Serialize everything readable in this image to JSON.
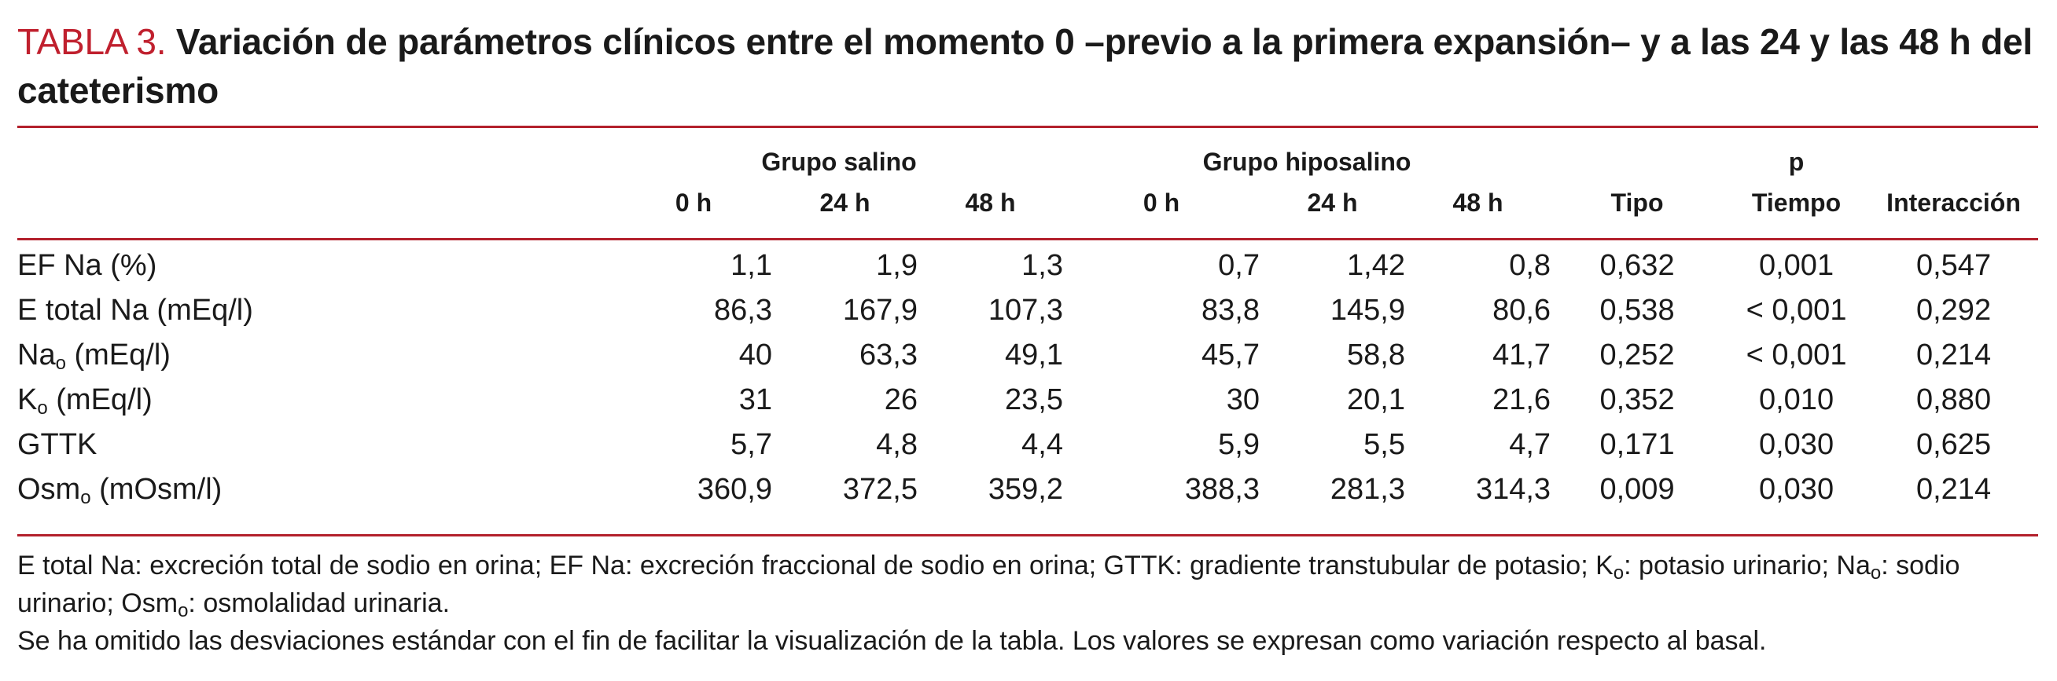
{
  "title": {
    "label": "TABLA 3.",
    "text": "Variación de parámetros clínicos entre el momento 0 –previo a la primera expansión– y a las 24 y las 48 h del cateterismo"
  },
  "header": {
    "group_salino": "Grupo salino",
    "group_hiposalino": "Grupo hiposalino",
    "group_p": "p",
    "cols_salino": [
      "0 h",
      "24 h",
      "48 h"
    ],
    "cols_hiposalino": [
      "0 h",
      "24 h",
      "48 h"
    ],
    "cols_p": [
      "Tipo",
      "Tiempo",
      "Interacción"
    ]
  },
  "rows": [
    {
      "label": "EF Na (%)",
      "label_main": "EF Na (%)",
      "sub": "",
      "rest": "",
      "values": [
        "1,1",
        "1,9",
        "1,3",
        "0,7",
        "1,42",
        "0,8",
        "0,632",
        "0,001",
        "0,547"
      ]
    },
    {
      "label": "E total Na (mEq/l)",
      "label_main": "E total Na (mEq/l)",
      "sub": "",
      "rest": "",
      "values": [
        "86,3",
        "167,9",
        "107,3",
        "83,8",
        "145,9",
        "80,6",
        "0,538",
        "< 0,001",
        "0,292"
      ]
    },
    {
      "label_main": "Na",
      "sub": "o",
      "rest": " (mEq/l)",
      "values": [
        "40",
        "63,3",
        "49,1",
        "45,7",
        "58,8",
        "41,7",
        "0,252",
        "< 0,001",
        "0,214"
      ]
    },
    {
      "label_main": "K",
      "sub": "o",
      "rest": " (mEq/l)",
      "values": [
        "31",
        "26",
        "23,5",
        "30",
        "20,1",
        "21,6",
        "0,352",
        "0,010",
        "0,880"
      ]
    },
    {
      "label_main": "GTTK",
      "sub": "",
      "rest": "",
      "values": [
        "5,7",
        "4,8",
        "4,4",
        "5,9",
        "5,5",
        "4,7",
        "0,171",
        "0,030",
        "0,625"
      ]
    },
    {
      "label_main": "Osm",
      "sub": "o",
      "rest": " (mOsm/l)",
      "values": [
        "360,9",
        "372,5",
        "359,2",
        "388,3",
        "281,3",
        "314,3",
        "0,009",
        "0,030",
        "0,214"
      ]
    }
  ],
  "notes": {
    "line1_a": "E total Na: excreción total de sodio en orina; EF Na: excreción fraccional de sodio en orina; GTTK: gradiente transtubular de potasio; K",
    "line1_sub1": "o",
    "line1_b": ": potasio urinario; Na",
    "line1_sub2": "o",
    "line1_c": ": sodio urinario; Osm",
    "line1_sub3": "o",
    "line1_d": ": osmolalidad urinaria.",
    "line2": "Se ha omitido las desviaciones estándar con el fin de facilitar la visualización de la tabla. Los valores se expresan como variación respecto al basal."
  }
}
